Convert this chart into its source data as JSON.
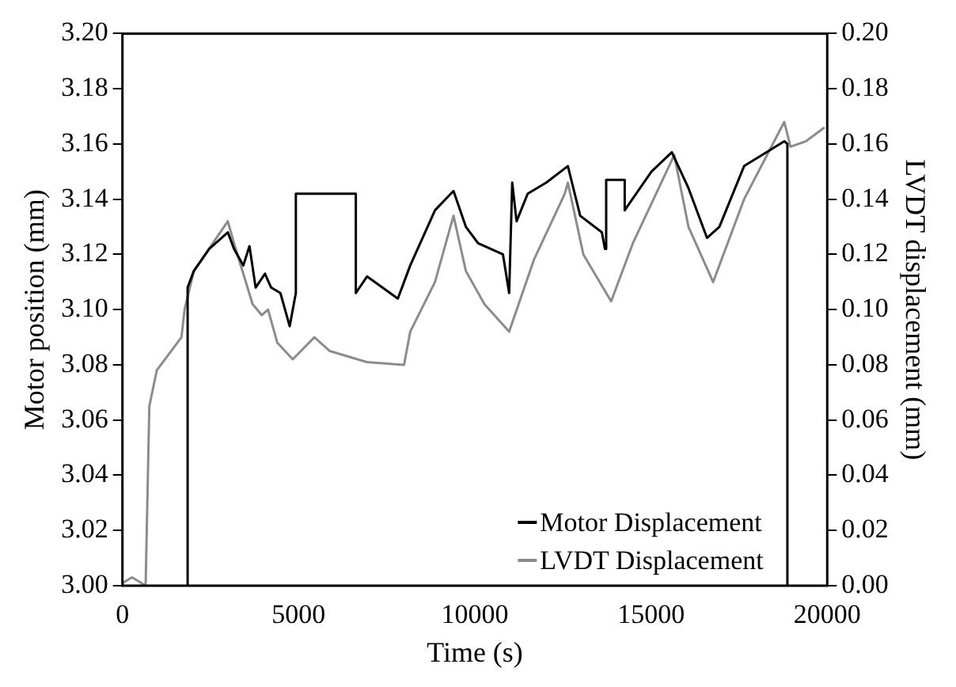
{
  "chart_data": {
    "type": "line",
    "xlabel": "Time (s)",
    "ylabel": "Motor position (mm)",
    "y2label": "LVDT displacement (mm)",
    "xlim": [
      0,
      20000
    ],
    "xticks": [
      0,
      5000,
      10000,
      15000,
      20000
    ],
    "ylim": [
      3.0,
      3.2
    ],
    "yticks": [
      {
        "value": 3,
        "label": "3.00"
      },
      3.02,
      3.04,
      3.06,
      3.08,
      {
        "value": 3.1,
        "label": "3.10"
      },
      3.12,
      3.14,
      3.16,
      3.18,
      {
        "value": 3.2,
        "label": "3.20"
      }
    ],
    "y2lim": [
      0,
      0.2
    ],
    "y2ticks": [
      {
        "value": 0,
        "label": "0.00"
      },
      0.02,
      0.04,
      0.06,
      0.08,
      {
        "value": 0.1,
        "label": "0.10"
      },
      0.12,
      0.14,
      0.16,
      0.18,
      {
        "value": 0.2,
        "label": "0.20"
      }
    ],
    "grid": false,
    "legend": "bottom right",
    "marker": "none",
    "line_style": "solid",
    "series": [
      {
        "name": "Motor Displacement",
        "color": "#000000",
        "x": [
          1850,
          1850,
          2026,
          2465,
          2990,
          3167,
          3430,
          3605,
          3780,
          4045,
          4220,
          4483,
          4746,
          4921,
          4921,
          6623,
          6623,
          6940,
          7815,
          8167,
          8870,
          9395,
          9746,
          10096,
          10798,
          10974,
          11061,
          11184,
          11500,
          12026,
          12640,
          12990,
          13605,
          13692,
          13727,
          14253,
          14253,
          15011,
          15590,
          16062,
          16588,
          16939,
          17641,
          18781,
          18869,
          18869
        ],
        "values": [
          3.0,
          3.108,
          3.114,
          3.122,
          3.128,
          3.122,
          3.116,
          3.123,
          3.108,
          3.113,
          3.108,
          3.106,
          3.094,
          3.106,
          3.142,
          3.142,
          3.106,
          3.112,
          3.104,
          3.116,
          3.136,
          3.143,
          3.13,
          3.124,
          3.12,
          3.106,
          3.146,
          3.132,
          3.142,
          3.146,
          3.152,
          3.134,
          3.128,
          3.122,
          3.147,
          3.147,
          3.136,
          3.15,
          3.157,
          3.144,
          3.126,
          3.13,
          3.152,
          3.161,
          3.16,
          3.0
        ]
      },
      {
        "name": "LVDT Displacement",
        "color": "#8c8c8c",
        "axis": "y2",
        "x": [
          10,
          272,
          535,
          658,
          763,
          974,
          1675,
          1763,
          2026,
          2990,
          3167,
          3693,
          3956,
          4132,
          4395,
          4833,
          5447,
          5886,
          6937,
          7990,
          8167,
          8868,
          9395,
          9746,
          10272,
          10974,
          11675,
          12553,
          12640,
          13079,
          13868,
          14483,
          15658,
          16062,
          16763,
          17641,
          18781,
          18958,
          19395,
          19921
        ],
        "values": [
          0.001,
          0.003,
          0.001,
          0.0,
          0.065,
          0.078,
          0.09,
          0.1,
          0.114,
          0.132,
          0.124,
          0.102,
          0.098,
          0.1,
          0.088,
          0.082,
          0.09,
          0.085,
          0.081,
          0.08,
          0.092,
          0.11,
          0.134,
          0.114,
          0.102,
          0.092,
          0.118,
          0.142,
          0.146,
          0.12,
          0.103,
          0.124,
          0.156,
          0.13,
          0.11,
          0.14,
          0.168,
          0.159,
          0.161,
          0.166
        ]
      }
    ]
  }
}
